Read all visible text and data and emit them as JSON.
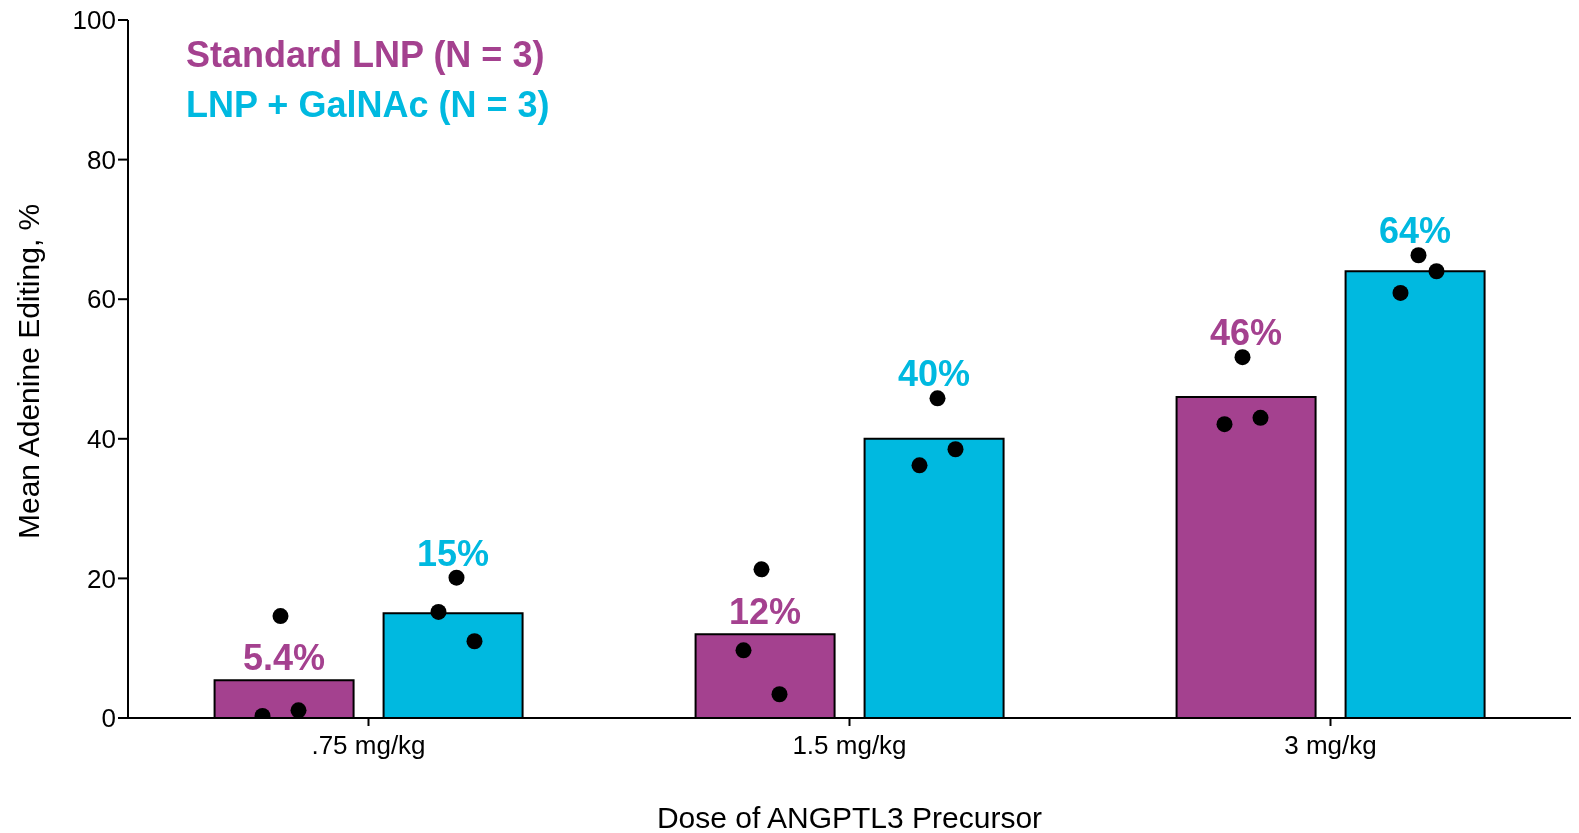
{
  "chart_data": {
    "type": "bar",
    "xlabel": "Dose of ANGPTL3 Precursor",
    "ylabel": "Mean Adenine Editing, %",
    "categories": [
      ".75 mg/kg",
      "1.5 mg/kg",
      "3 mg/kg"
    ],
    "ylim": [
      0,
      100
    ],
    "yticks": [
      0,
      20,
      40,
      60,
      80,
      100
    ],
    "grid": false,
    "legend": "top left",
    "series": [
      {
        "name": "Standard LNP (N = 3)",
        "color": "#a4418f",
        "values": [
          5.4,
          12,
          46
        ],
        "value_labels": [
          "5.4%",
          "12%",
          "46%"
        ]
      },
      {
        "name": "LNP + GalNAc (N = 3)",
        "color": "#00b9e0",
        "values": [
          15,
          40,
          64
        ],
        "value_labels": [
          "15%",
          "40%",
          "64%"
        ]
      },
      {
        "type": "scatter",
        "color": "#000000",
        "marker": "circle",
        "x": [
          ".75 mg/kg",
          ".75 mg/kg",
          ".75 mg/kg",
          "1.5 mg/kg",
          "1.5 mg/kg",
          "1.5 mg/kg",
          "3 mg/kg",
          "3 mg/kg",
          "3 mg/kg"
        ],
        "values": [
          14.6,
          0.3,
          1.1,
          21.3,
          9.7,
          3.4,
          51.7,
          42.1,
          43.0
        ]
      },
      {
        "type": "scatter",
        "color": "#000000",
        "marker": "circle",
        "x": [
          ".75 mg/kg",
          ".75 mg/kg",
          ".75 mg/kg",
          "1.5 mg/kg",
          "1.5 mg/kg",
          "1.5 mg/kg",
          "3 mg/kg",
          "3 mg/kg",
          "3 mg/kg"
        ],
        "values": [
          20.1,
          15.2,
          11.0,
          45.8,
          36.2,
          38.5,
          66.3,
          60.9,
          64.0
        ]
      }
    ]
  }
}
